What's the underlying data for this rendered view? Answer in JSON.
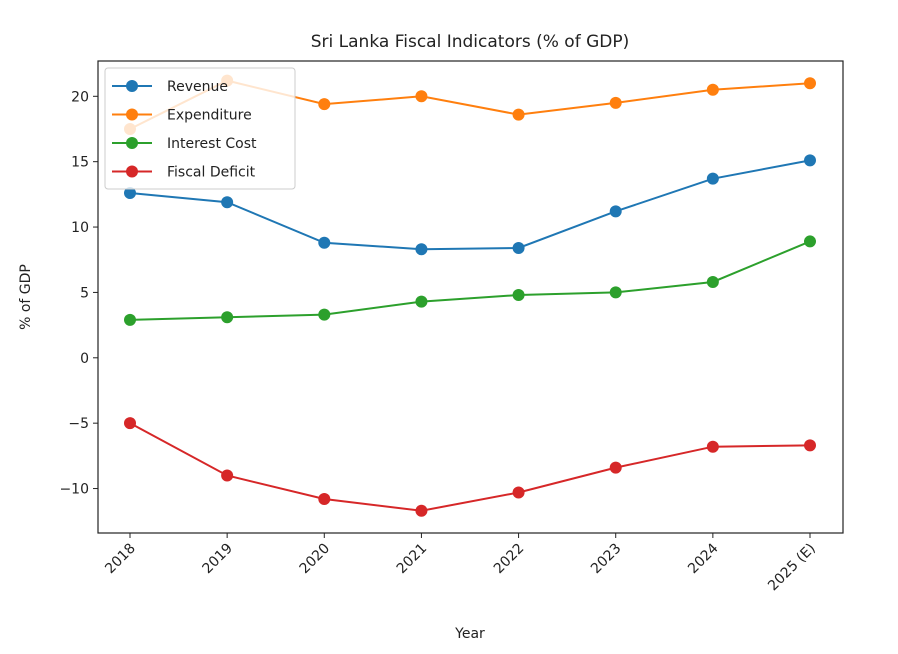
{
  "chart_data": {
    "type": "line",
    "title": "Sri Lanka Fiscal Indicators (% of GDP)",
    "xlabel": "Year",
    "ylabel": "% of GDP",
    "categories": [
      "2018",
      "2019",
      "2020",
      "2021",
      "2022",
      "2023",
      "2024",
      "2025 (E)"
    ],
    "ylim": [
      -13.4,
      22.7
    ],
    "yticks": [
      -10,
      -5,
      0,
      5,
      10,
      15,
      20
    ],
    "ytick_labels": [
      "−10",
      "−5",
      "0",
      "5",
      "10",
      "15",
      "20"
    ],
    "grid": false,
    "legend_position": "upper-left",
    "series": [
      {
        "name": "Revenue",
        "color": "#1f77b4",
        "values": [
          12.6,
          11.9,
          8.8,
          8.3,
          8.4,
          11.2,
          13.7,
          15.1
        ]
      },
      {
        "name": "Expenditure",
        "color": "#ff7f0e",
        "values": [
          17.5,
          21.2,
          19.4,
          20.0,
          18.6,
          19.5,
          20.5,
          21.0
        ]
      },
      {
        "name": "Interest Cost",
        "color": "#2ca02c",
        "values": [
          2.9,
          3.1,
          3.3,
          4.3,
          4.8,
          5.0,
          5.8,
          8.9
        ]
      },
      {
        "name": "Fiscal Deficit",
        "color": "#d62728",
        "values": [
          -5.0,
          -9.0,
          -10.8,
          -11.7,
          -10.3,
          -8.4,
          -6.8,
          -6.7
        ]
      }
    ]
  }
}
